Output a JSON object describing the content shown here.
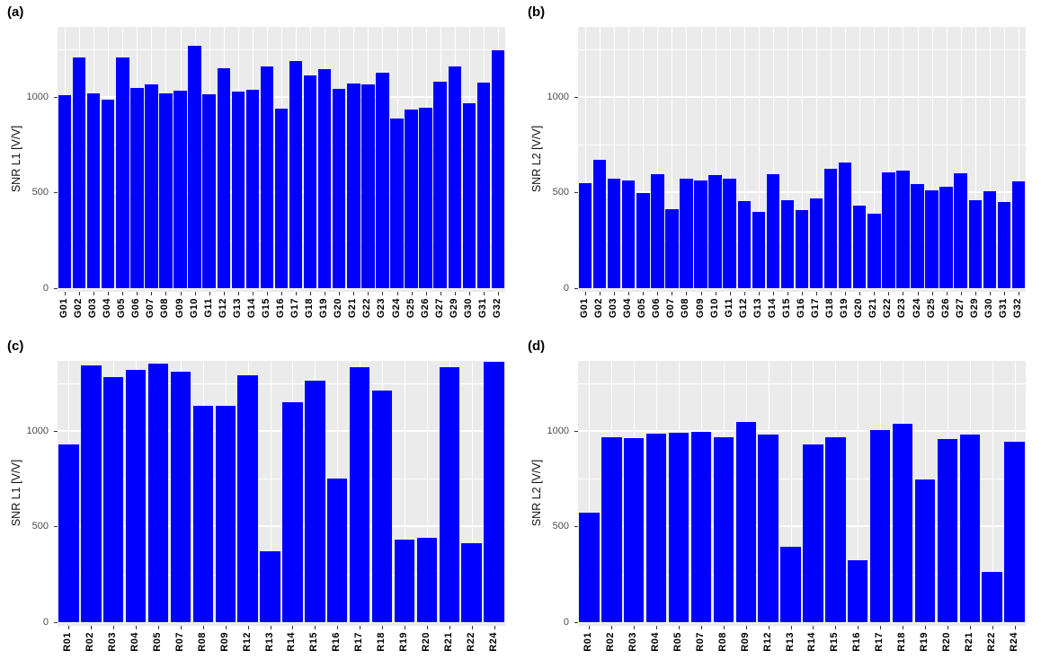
{
  "page": {
    "background": "#FFFFFF"
  },
  "style": {
    "panel_bg": "#EBEBEB",
    "grid_color": "#FFFFFF",
    "bar_color": "#0000FF",
    "tick_color": "#333333",
    "y_text_color": "#4D4D4D",
    "x_text_color": "#000000"
  },
  "chart_data": [
    {
      "type": "bar",
      "panel_label": "(a)",
      "ylabel": "SNR L1 [V/V]",
      "categories": [
        "G01",
        "G02",
        "G03",
        "G04",
        "G05",
        "G06",
        "G07",
        "G08",
        "G09",
        "G10",
        "G11",
        "G12",
        "G13",
        "G14",
        "G15",
        "G16",
        "G17",
        "G18",
        "G19",
        "G20",
        "G21",
        "G22",
        "G23",
        "G24",
        "G25",
        "G26",
        "G27",
        "G29",
        "G30",
        "G31",
        "G32"
      ],
      "values": [
        1010,
        1205,
        1020,
        985,
        1205,
        1045,
        1065,
        1020,
        1030,
        1265,
        1015,
        1150,
        1025,
        1035,
        1160,
        940,
        1185,
        1110,
        1145,
        1040,
        1070,
        1065,
        1125,
        885,
        935,
        945,
        1080,
        1160,
        965,
        1075,
        1245
      ],
      "yticks": [
        0,
        500,
        1000
      ],
      "minor_ticks": [
        250,
        750,
        1250
      ],
      "ylim": [
        0,
        1365
      ],
      "grid": true,
      "legend": "none"
    },
    {
      "type": "bar",
      "panel_label": "(b)",
      "ylabel": "SNR L2 [V/V]",
      "categories": [
        "G01",
        "G02",
        "G03",
        "G04",
        "G05",
        "G06",
        "G07",
        "G08",
        "G09",
        "G10",
        "G11",
        "G12",
        "G13",
        "G14",
        "G15",
        "G16",
        "G17",
        "G18",
        "G19",
        "G20",
        "G21",
        "G22",
        "G23",
        "G24",
        "G25",
        "G26",
        "G27",
        "G29",
        "G30",
        "G31",
        "G32"
      ],
      "values": [
        550,
        670,
        570,
        565,
        495,
        595,
        415,
        570,
        565,
        590,
        570,
        455,
        400,
        595,
        460,
        410,
        470,
        625,
        655,
        430,
        390,
        605,
        615,
        545,
        510,
        530,
        600,
        460,
        505,
        450,
        560
      ],
      "yticks": [
        0,
        500,
        1000
      ],
      "minor_ticks": [
        250,
        750,
        1250
      ],
      "ylim": [
        0,
        1365
      ],
      "grid": true,
      "legend": "none"
    },
    {
      "type": "bar",
      "panel_label": "(c)",
      "ylabel": "SNR L1 [V/V]",
      "categories": [
        "R01",
        "R02",
        "R03",
        "R04",
        "R05",
        "R07",
        "R08",
        "R09",
        "R12",
        "R13",
        "R14",
        "R15",
        "R16",
        "R17",
        "R18",
        "R19",
        "R20",
        "R21",
        "R22",
        "R24"
      ],
      "values": [
        930,
        1340,
        1280,
        1320,
        1350,
        1310,
        1130,
        1130,
        1290,
        370,
        1150,
        1260,
        750,
        1330,
        1210,
        430,
        440,
        1330,
        415,
        1360
      ],
      "yticks": [
        0,
        500,
        1000
      ],
      "minor_ticks": [
        250,
        750,
        1250
      ],
      "ylim": [
        0,
        1365
      ],
      "grid": true,
      "legend": "none"
    },
    {
      "type": "bar",
      "panel_label": "(d)",
      "ylabel": "SNR L2 [V/V]",
      "categories": [
        "R01",
        "R02",
        "R03",
        "R04",
        "R05",
        "R07",
        "R08",
        "R09",
        "R12",
        "R13",
        "R14",
        "R15",
        "R16",
        "R17",
        "R18",
        "R19",
        "R20",
        "R21",
        "R22",
        "R24"
      ],
      "values": [
        570,
        965,
        960,
        985,
        990,
        995,
        965,
        1045,
        980,
        395,
        930,
        965,
        325,
        1005,
        1035,
        745,
        955,
        980,
        265,
        945
      ],
      "yticks": [
        0,
        500,
        1000
      ],
      "minor_ticks": [
        250,
        750,
        1250
      ],
      "ylim": [
        0,
        1365
      ],
      "grid": true,
      "legend": "none"
    }
  ]
}
